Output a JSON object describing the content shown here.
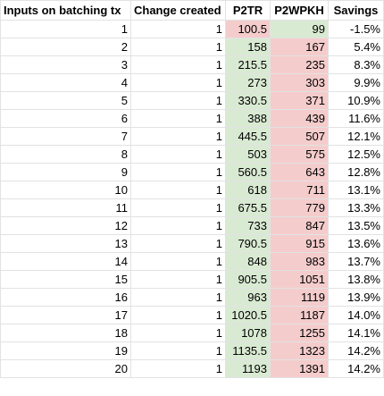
{
  "headers": [
    "Inputs on batching tx",
    "Change created",
    "P2TR",
    "P2WPKH",
    "Savings"
  ],
  "colors": {
    "better": "#d9ead3",
    "worse": "#f4cccc",
    "grid": "#e2e2e2"
  },
  "rows": [
    {
      "inputs": "1",
      "change": "1",
      "p2tr": "100.5",
      "p2wpkh": "99",
      "savings": "-1.5%",
      "p2tr_better": false
    },
    {
      "inputs": "2",
      "change": "1",
      "p2tr": "158",
      "p2wpkh": "167",
      "savings": "5.4%",
      "p2tr_better": true
    },
    {
      "inputs": "3",
      "change": "1",
      "p2tr": "215.5",
      "p2wpkh": "235",
      "savings": "8.3%",
      "p2tr_better": true
    },
    {
      "inputs": "4",
      "change": "1",
      "p2tr": "273",
      "p2wpkh": "303",
      "savings": "9.9%",
      "p2tr_better": true
    },
    {
      "inputs": "5",
      "change": "1",
      "p2tr": "330.5",
      "p2wpkh": "371",
      "savings": "10.9%",
      "p2tr_better": true
    },
    {
      "inputs": "6",
      "change": "1",
      "p2tr": "388",
      "p2wpkh": "439",
      "savings": "11.6%",
      "p2tr_better": true
    },
    {
      "inputs": "7",
      "change": "1",
      "p2tr": "445.5",
      "p2wpkh": "507",
      "savings": "12.1%",
      "p2tr_better": true
    },
    {
      "inputs": "8",
      "change": "1",
      "p2tr": "503",
      "p2wpkh": "575",
      "savings": "12.5%",
      "p2tr_better": true
    },
    {
      "inputs": "9",
      "change": "1",
      "p2tr": "560.5",
      "p2wpkh": "643",
      "savings": "12.8%",
      "p2tr_better": true
    },
    {
      "inputs": "10",
      "change": "1",
      "p2tr": "618",
      "p2wpkh": "711",
      "savings": "13.1%",
      "p2tr_better": true
    },
    {
      "inputs": "11",
      "change": "1",
      "p2tr": "675.5",
      "p2wpkh": "779",
      "savings": "13.3%",
      "p2tr_better": true
    },
    {
      "inputs": "12",
      "change": "1",
      "p2tr": "733",
      "p2wpkh": "847",
      "savings": "13.5%",
      "p2tr_better": true
    },
    {
      "inputs": "13",
      "change": "1",
      "p2tr": "790.5",
      "p2wpkh": "915",
      "savings": "13.6%",
      "p2tr_better": true
    },
    {
      "inputs": "14",
      "change": "1",
      "p2tr": "848",
      "p2wpkh": "983",
      "savings": "13.7%",
      "p2tr_better": true
    },
    {
      "inputs": "15",
      "change": "1",
      "p2tr": "905.5",
      "p2wpkh": "1051",
      "savings": "13.8%",
      "p2tr_better": true
    },
    {
      "inputs": "16",
      "change": "1",
      "p2tr": "963",
      "p2wpkh": "1119",
      "savings": "13.9%",
      "p2tr_better": true
    },
    {
      "inputs": "17",
      "change": "1",
      "p2tr": "1020.5",
      "p2wpkh": "1187",
      "savings": "14.0%",
      "p2tr_better": true
    },
    {
      "inputs": "18",
      "change": "1",
      "p2tr": "1078",
      "p2wpkh": "1255",
      "savings": "14.1%",
      "p2tr_better": true
    },
    {
      "inputs": "19",
      "change": "1",
      "p2tr": "1135.5",
      "p2wpkh": "1323",
      "savings": "14.2%",
      "p2tr_better": true
    },
    {
      "inputs": "20",
      "change": "1",
      "p2tr": "1193",
      "p2wpkh": "1391",
      "savings": "14.2%",
      "p2tr_better": true
    }
  ]
}
